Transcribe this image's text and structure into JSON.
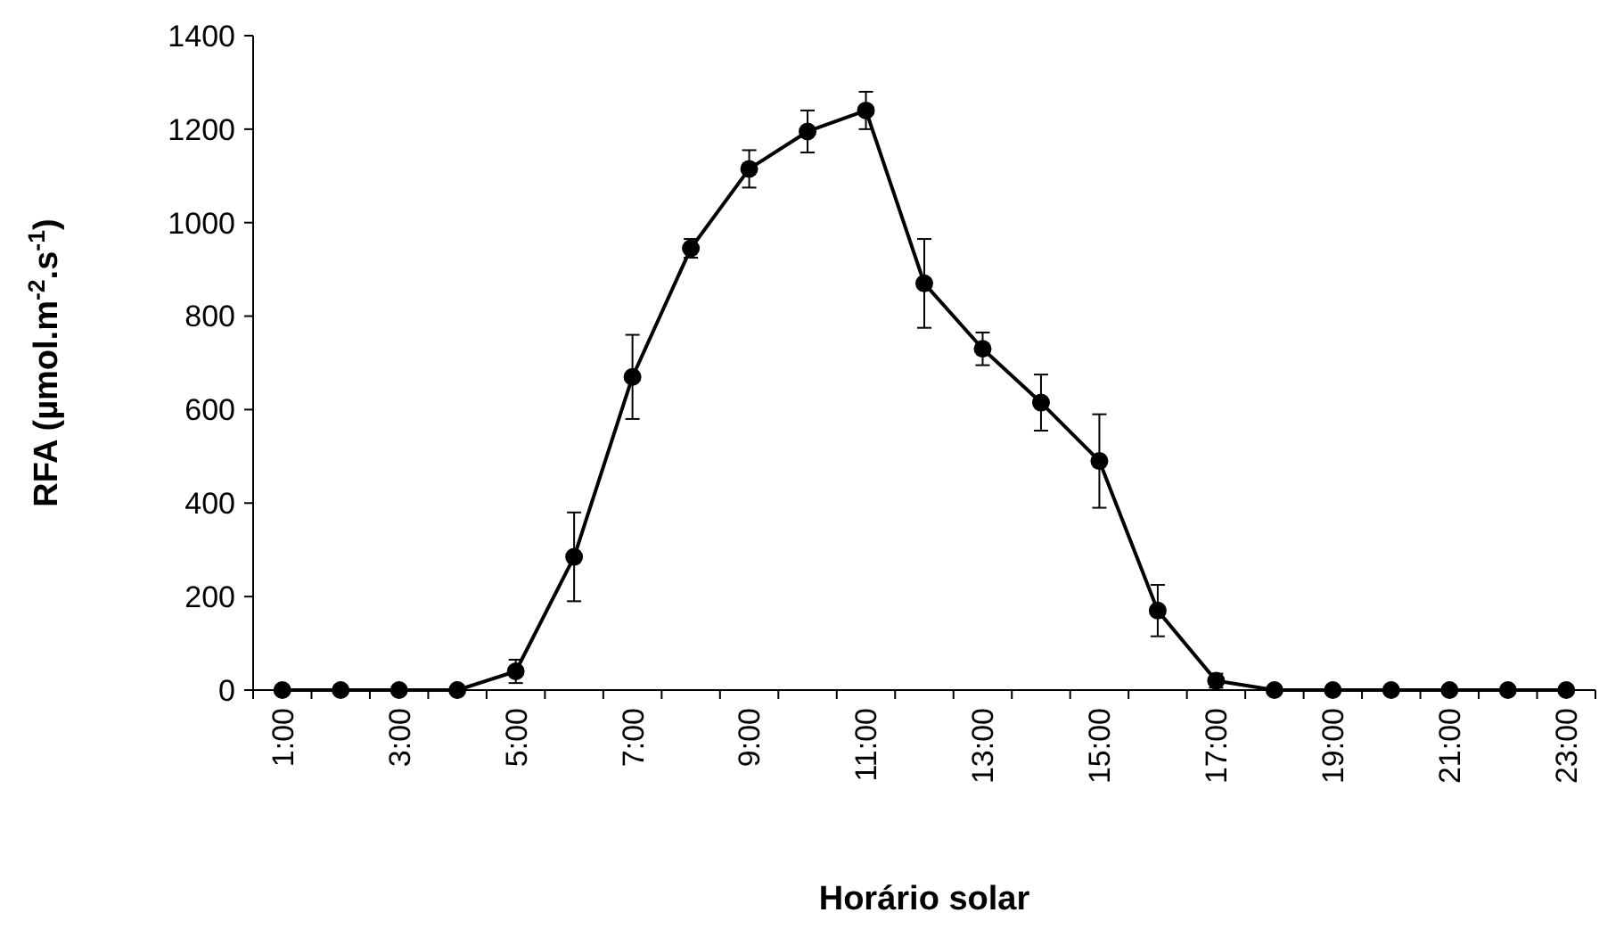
{
  "chart_data": {
    "type": "line",
    "xlabel": "Horário solar",
    "ylabel": "RFA (µmol.m$^{-2}$.s$^{-1}$)",
    "categories": [
      "1:00",
      null,
      "3:00",
      null,
      "5:00",
      null,
      "7:00",
      null,
      "9:00",
      null,
      "11:00",
      null,
      "13:00",
      null,
      "15:00",
      null,
      "17:00",
      null,
      "19:00",
      null,
      "21:00",
      null,
      "23:00"
    ],
    "series": [
      {
        "color": "#000000",
        "values": [
          0,
          0,
          0,
          0,
          40,
          285,
          670,
          945,
          1115,
          1195,
          1240,
          870,
          730,
          615,
          490,
          170,
          20,
          0,
          0,
          0,
          0,
          0,
          0
        ],
        "errors": [
          null,
          null,
          null,
          null,
          25,
          95,
          90,
          20,
          40,
          45,
          40,
          95,
          35,
          60,
          100,
          55,
          15,
          null,
          null,
          null,
          null,
          null,
          null
        ]
      }
    ],
    "ylim": [
      0,
      1400
    ],
    "yticks": [
      0,
      200,
      400,
      600,
      800,
      1000,
      1200,
      1400
    ],
    "marker": "circle",
    "line_style": "solid"
  }
}
